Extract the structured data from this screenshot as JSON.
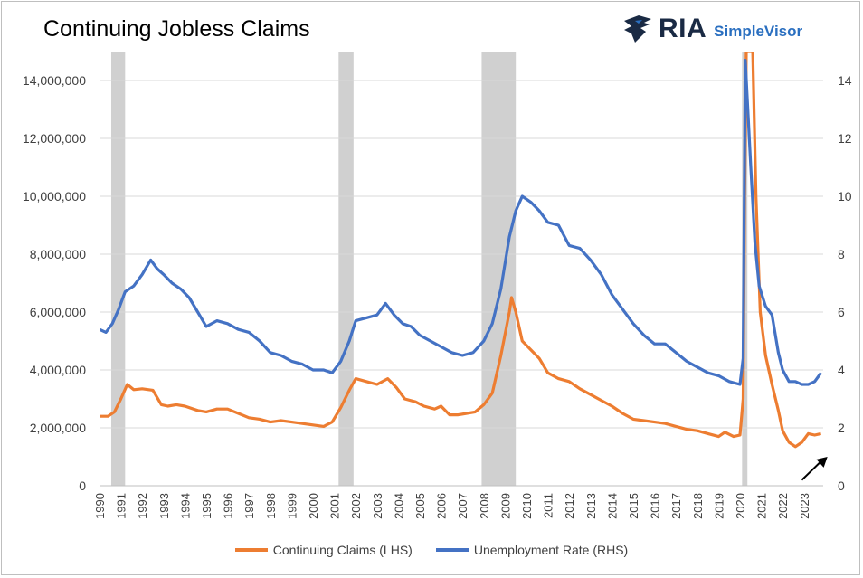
{
  "header": {
    "title": "Continuing Jobless Claims",
    "logo_text": "RIA",
    "logo_subtext": "SimpleVisor"
  },
  "colors": {
    "claims": "#ed7d31",
    "unemployment": "#4472c4",
    "recession": "#d0d0d0",
    "grid": "#d9d9d9",
    "axis_text": "#404040",
    "arrow": "#000000"
  },
  "chart_data": {
    "type": "line",
    "x_axis": {
      "type": "year",
      "range": [
        1990,
        2023.9
      ],
      "tick_labels": [
        "1990",
        "1991",
        "1992",
        "1993",
        "1994",
        "1995",
        "1996",
        "1997",
        "1998",
        "1999",
        "2000",
        "2001",
        "2002",
        "2003",
        "2004",
        "2005",
        "2006",
        "2007",
        "2008",
        "2009",
        "2010",
        "2011",
        "2012",
        "2013",
        "2014",
        "2015",
        "2016",
        "2017",
        "2018",
        "2019",
        "2020",
        "2021",
        "2022",
        "2023"
      ],
      "label_orientation": "vertical"
    },
    "y_left": {
      "range": [
        0,
        15000000
      ],
      "ticks": [
        0,
        2000000,
        4000000,
        6000000,
        8000000,
        10000000,
        12000000,
        14000000
      ],
      "tick_labels": [
        "0",
        "2,000,000",
        "4,000,000",
        "6,000,000",
        "8,000,000",
        "10,000,000",
        "12,000,000",
        "14,000,000"
      ]
    },
    "y_right": {
      "range": [
        0,
        15
      ],
      "ticks": [
        0,
        2,
        4,
        6,
        8,
        10,
        12,
        14
      ],
      "tick_labels": [
        "0",
        "2",
        "4",
        "6",
        "8",
        "10",
        "12",
        "14"
      ]
    },
    "grid": "horizontal",
    "legend_position": "bottom",
    "recessions": [
      {
        "start": 1990.55,
        "end": 1991.2
      },
      {
        "start": 2001.2,
        "end": 2001.9
      },
      {
        "start": 2007.9,
        "end": 2009.5
      },
      {
        "start": 2020.1,
        "end": 2020.35
      }
    ],
    "series": [
      {
        "name": "Continuing Claims (LHS)",
        "axis": "left",
        "points": [
          [
            1990.0,
            2400000
          ],
          [
            1990.4,
            2400000
          ],
          [
            1990.7,
            2550000
          ],
          [
            1991.0,
            3000000
          ],
          [
            1991.3,
            3500000
          ],
          [
            1991.6,
            3320000
          ],
          [
            1992.0,
            3350000
          ],
          [
            1992.5,
            3300000
          ],
          [
            1992.9,
            2800000
          ],
          [
            1993.2,
            2750000
          ],
          [
            1993.6,
            2800000
          ],
          [
            1994.0,
            2750000
          ],
          [
            1994.6,
            2600000
          ],
          [
            1995.0,
            2550000
          ],
          [
            1995.5,
            2650000
          ],
          [
            1996.0,
            2650000
          ],
          [
            1996.5,
            2500000
          ],
          [
            1997.0,
            2350000
          ],
          [
            1997.5,
            2300000
          ],
          [
            1998.0,
            2200000
          ],
          [
            1998.5,
            2250000
          ],
          [
            1999.0,
            2200000
          ],
          [
            1999.5,
            2150000
          ],
          [
            2000.0,
            2100000
          ],
          [
            2000.5,
            2050000
          ],
          [
            2000.9,
            2200000
          ],
          [
            2001.3,
            2700000
          ],
          [
            2001.7,
            3300000
          ],
          [
            2002.0,
            3700000
          ],
          [
            2002.5,
            3600000
          ],
          [
            2003.0,
            3500000
          ],
          [
            2003.5,
            3700000
          ],
          [
            2003.9,
            3400000
          ],
          [
            2004.3,
            3000000
          ],
          [
            2004.8,
            2900000
          ],
          [
            2005.2,
            2750000
          ],
          [
            2005.7,
            2650000
          ],
          [
            2006.0,
            2750000
          ],
          [
            2006.4,
            2450000
          ],
          [
            2006.8,
            2450000
          ],
          [
            2007.2,
            2500000
          ],
          [
            2007.6,
            2550000
          ],
          [
            2008.0,
            2800000
          ],
          [
            2008.4,
            3200000
          ],
          [
            2008.8,
            4500000
          ],
          [
            2009.2,
            6000000
          ],
          [
            2009.3,
            6500000
          ],
          [
            2009.5,
            6000000
          ],
          [
            2009.8,
            5000000
          ],
          [
            2010.2,
            4700000
          ],
          [
            2010.6,
            4400000
          ],
          [
            2011.0,
            3900000
          ],
          [
            2011.5,
            3700000
          ],
          [
            2012.0,
            3600000
          ],
          [
            2012.5,
            3350000
          ],
          [
            2013.0,
            3150000
          ],
          [
            2013.5,
            2950000
          ],
          [
            2014.0,
            2750000
          ],
          [
            2014.5,
            2500000
          ],
          [
            2015.0,
            2300000
          ],
          [
            2015.5,
            2250000
          ],
          [
            2016.0,
            2200000
          ],
          [
            2016.5,
            2150000
          ],
          [
            2017.0,
            2050000
          ],
          [
            2017.5,
            1950000
          ],
          [
            2018.0,
            1900000
          ],
          [
            2018.5,
            1800000
          ],
          [
            2019.0,
            1700000
          ],
          [
            2019.3,
            1850000
          ],
          [
            2019.7,
            1700000
          ],
          [
            2020.0,
            1750000
          ],
          [
            2020.15,
            3000000
          ],
          [
            2020.22,
            10000000
          ],
          [
            2020.3,
            15000000
          ],
          [
            2020.6,
            15000000
          ],
          [
            2020.75,
            10000000
          ],
          [
            2020.95,
            6000000
          ],
          [
            2021.2,
            4500000
          ],
          [
            2021.5,
            3500000
          ],
          [
            2021.8,
            2600000
          ],
          [
            2022.0,
            1900000
          ],
          [
            2022.3,
            1500000
          ],
          [
            2022.6,
            1350000
          ],
          [
            2022.9,
            1500000
          ],
          [
            2023.2,
            1800000
          ],
          [
            2023.5,
            1750000
          ],
          [
            2023.8,
            1800000
          ]
        ]
      },
      {
        "name": "Unemployment Rate (RHS)",
        "axis": "right",
        "points": [
          [
            1990.0,
            5.4
          ],
          [
            1990.3,
            5.3
          ],
          [
            1990.6,
            5.6
          ],
          [
            1990.9,
            6.1
          ],
          [
            1991.2,
            6.7
          ],
          [
            1991.6,
            6.9
          ],
          [
            1992.0,
            7.3
          ],
          [
            1992.4,
            7.8
          ],
          [
            1992.7,
            7.5
          ],
          [
            1993.0,
            7.3
          ],
          [
            1993.4,
            7.0
          ],
          [
            1993.8,
            6.8
          ],
          [
            1994.2,
            6.5
          ],
          [
            1994.6,
            6.0
          ],
          [
            1995.0,
            5.5
          ],
          [
            1995.5,
            5.7
          ],
          [
            1996.0,
            5.6
          ],
          [
            1996.5,
            5.4
          ],
          [
            1997.0,
            5.3
          ],
          [
            1997.5,
            5.0
          ],
          [
            1998.0,
            4.6
          ],
          [
            1998.5,
            4.5
          ],
          [
            1999.0,
            4.3
          ],
          [
            1999.5,
            4.2
          ],
          [
            2000.0,
            4.0
          ],
          [
            2000.5,
            4.0
          ],
          [
            2000.9,
            3.9
          ],
          [
            2001.3,
            4.3
          ],
          [
            2001.7,
            5.0
          ],
          [
            2002.0,
            5.7
          ],
          [
            2002.5,
            5.8
          ],
          [
            2003.0,
            5.9
          ],
          [
            2003.4,
            6.3
          ],
          [
            2003.8,
            5.9
          ],
          [
            2004.2,
            5.6
          ],
          [
            2004.6,
            5.5
          ],
          [
            2005.0,
            5.2
          ],
          [
            2005.5,
            5.0
          ],
          [
            2006.0,
            4.8
          ],
          [
            2006.5,
            4.6
          ],
          [
            2007.0,
            4.5
          ],
          [
            2007.5,
            4.6
          ],
          [
            2008.0,
            5.0
          ],
          [
            2008.4,
            5.6
          ],
          [
            2008.8,
            6.8
          ],
          [
            2009.2,
            8.6
          ],
          [
            2009.5,
            9.5
          ],
          [
            2009.8,
            10.0
          ],
          [
            2010.2,
            9.8
          ],
          [
            2010.6,
            9.5
          ],
          [
            2011.0,
            9.1
          ],
          [
            2011.5,
            9.0
          ],
          [
            2012.0,
            8.3
          ],
          [
            2012.5,
            8.2
          ],
          [
            2013.0,
            7.8
          ],
          [
            2013.5,
            7.3
          ],
          [
            2014.0,
            6.6
          ],
          [
            2014.5,
            6.1
          ],
          [
            2015.0,
            5.6
          ],
          [
            2015.5,
            5.2
          ],
          [
            2016.0,
            4.9
          ],
          [
            2016.5,
            4.9
          ],
          [
            2017.0,
            4.6
          ],
          [
            2017.5,
            4.3
          ],
          [
            2018.0,
            4.1
          ],
          [
            2018.5,
            3.9
          ],
          [
            2019.0,
            3.8
          ],
          [
            2019.5,
            3.6
          ],
          [
            2020.0,
            3.5
          ],
          [
            2020.15,
            4.4
          ],
          [
            2020.25,
            14.7
          ],
          [
            2020.35,
            13.3
          ],
          [
            2020.5,
            11.1
          ],
          [
            2020.7,
            8.4
          ],
          [
            2020.9,
            6.9
          ],
          [
            2021.2,
            6.2
          ],
          [
            2021.5,
            5.9
          ],
          [
            2021.8,
            4.6
          ],
          [
            2022.0,
            4.0
          ],
          [
            2022.3,
            3.6
          ],
          [
            2022.6,
            3.6
          ],
          [
            2022.9,
            3.5
          ],
          [
            2023.2,
            3.5
          ],
          [
            2023.5,
            3.6
          ],
          [
            2023.8,
            3.9
          ]
        ]
      }
    ],
    "annotations": [
      {
        "type": "arrow",
        "from": [
          2022.9,
          0.2
        ],
        "to": [
          2024.1,
          1.0
        ],
        "axis": "right"
      }
    ]
  }
}
